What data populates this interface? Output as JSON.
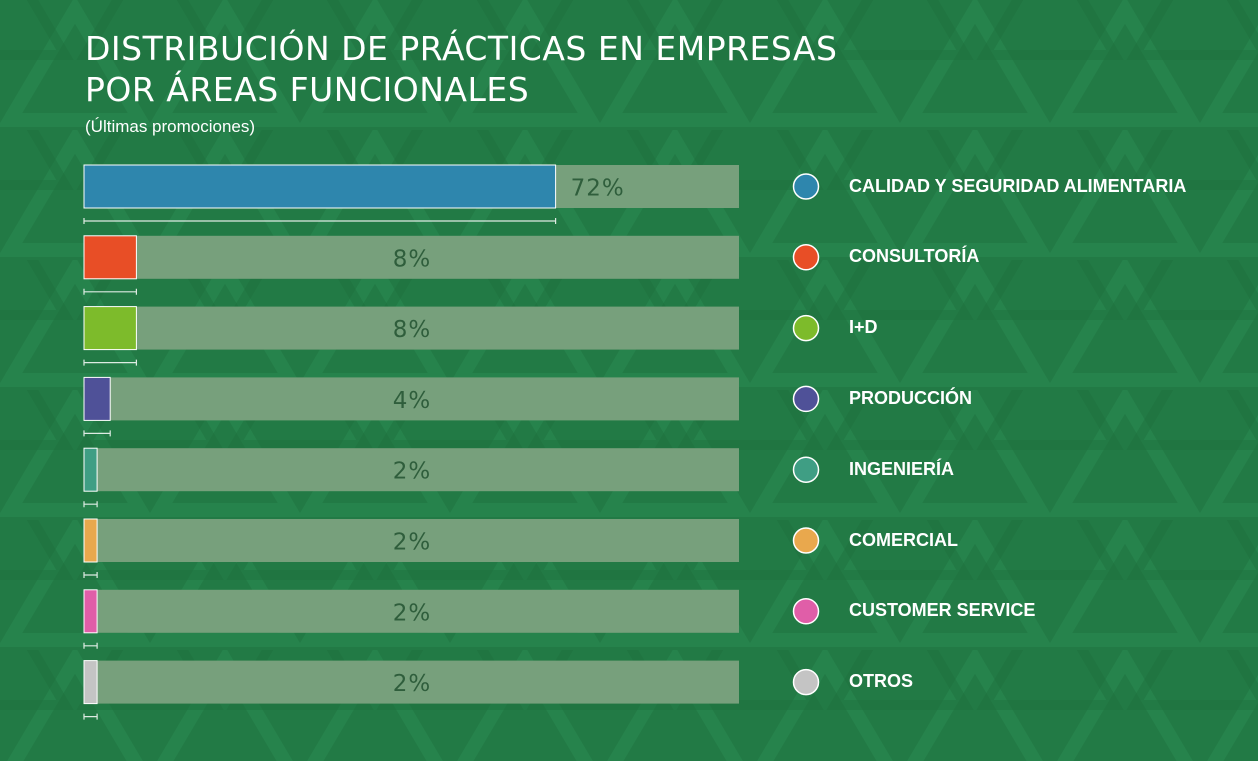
{
  "title_line1": "DISTRIBUCIÓN DE PRÁCTICAS EN EMPRESAS",
  "title_line2": "POR ÁREAS FUNCIONALES",
  "subtitle": "(Últimas promociones)",
  "colors": {
    "background": "#227a45",
    "track": "#77a07c",
    "value_text": "#2f5e3c"
  },
  "chart_data": {
    "type": "bar",
    "orientation": "horizontal",
    "categories": [
      "CALIDAD Y SEGURIDAD ALIMENTARIA",
      "CONSULTORÍA",
      "I+D",
      "PRODUCCIÓN",
      "INGENIERÍA",
      "COMERCIAL",
      "CUSTOMER SERVICE",
      "OTROS"
    ],
    "values": [
      72,
      8,
      8,
      4,
      2,
      2,
      2,
      2
    ],
    "value_labels": [
      "72%",
      "8%",
      "8%",
      "4%",
      "2%",
      "2%",
      "2%",
      "2%"
    ],
    "colors": [
      "#2e86ad",
      "#e84e26",
      "#7dbb2b",
      "#4f5198",
      "#3f9e84",
      "#e9a84d",
      "#e05ea8",
      "#c4c4c4"
    ],
    "xlim": [
      0,
      100
    ],
    "legend_position": "right"
  }
}
